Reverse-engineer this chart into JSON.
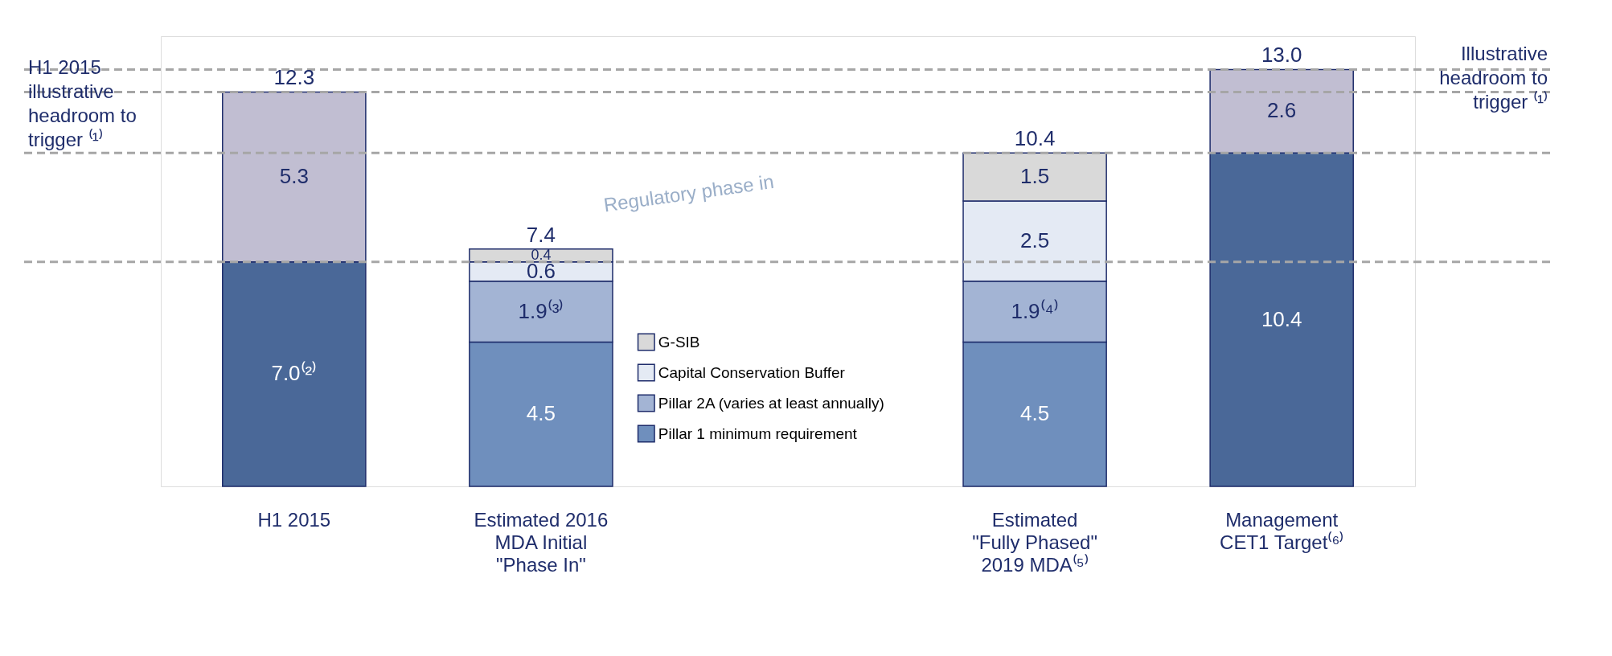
{
  "chart_data": {
    "type": "bar",
    "stacked": true,
    "categories": [
      "H1 2015",
      "Estimated 2016\nMDA Initial\n\"Phase In\"",
      null,
      "Estimated\n\"Fully Phased\"\n2019 MDA⁽⁵⁾",
      "Management\nCET1 Target⁽⁶⁾"
    ],
    "series": [
      {
        "name": "Pillar 1 minimum requirement",
        "color": "#6f8fbd",
        "values": [
          null,
          4.5,
          null,
          4.5,
          null
        ],
        "value_labels": [
          null,
          "4.5",
          null,
          "4.5",
          null
        ]
      },
      {
        "name": "Pillar 2A (varies at least annually)",
        "color": "#a3b4d4",
        "values": [
          null,
          1.9,
          null,
          1.9,
          null
        ],
        "value_labels": [
          null,
          "1.9⁽³⁾",
          null,
          "1.9⁽⁴⁾",
          null
        ]
      },
      {
        "name": "Capital Conservation Buffer",
        "color": "#e4eaf4",
        "values": [
          null,
          0.6,
          null,
          2.5,
          null
        ],
        "value_labels": [
          null,
          "0.6",
          null,
          "2.5",
          null
        ]
      },
      {
        "name": "G-SIB",
        "color": "#d9d9d9",
        "values": [
          null,
          0.4,
          null,
          1.5,
          null
        ],
        "value_labels": [
          null,
          "0.4",
          null,
          "1.5",
          null
        ]
      },
      {
        "color": "#4a6898",
        "values": [
          7.0,
          null,
          null,
          null,
          10.4
        ],
        "value_labels": [
          "7.0⁽²⁾",
          null,
          null,
          null,
          "10.4"
        ]
      },
      {
        "color": "#c1bed2",
        "values": [
          5.3,
          null,
          null,
          null,
          2.6
        ],
        "value_labels": [
          "5.3",
          null,
          null,
          null,
          "2.6"
        ]
      }
    ],
    "totals": [
      "12.3",
      "7.4",
      null,
      "10.4",
      "13.0"
    ],
    "ref_lines": [
      {
        "axis": "y",
        "value": 12.3,
        "color": "#a6a6a6",
        "line_style": "dashed"
      },
      {
        "axis": "y",
        "value": 7.0,
        "color": "#a6a6a6",
        "line_style": "dashed"
      },
      {
        "axis": "y",
        "value": 13.0,
        "color": "#a6a6a6",
        "line_style": "dashed"
      },
      {
        "axis": "y",
        "value": 10.4,
        "color": "#a6a6a6",
        "line_style": "dashed"
      }
    ],
    "annotations": [
      "H1 2015\nillustrative\nheadroom to\ntrigger ⁽¹⁾",
      "Illustrative\nheadroom to\ntrigger ⁽¹⁾",
      "Regulatory phase in"
    ],
    "legend": "bottom"
  }
}
